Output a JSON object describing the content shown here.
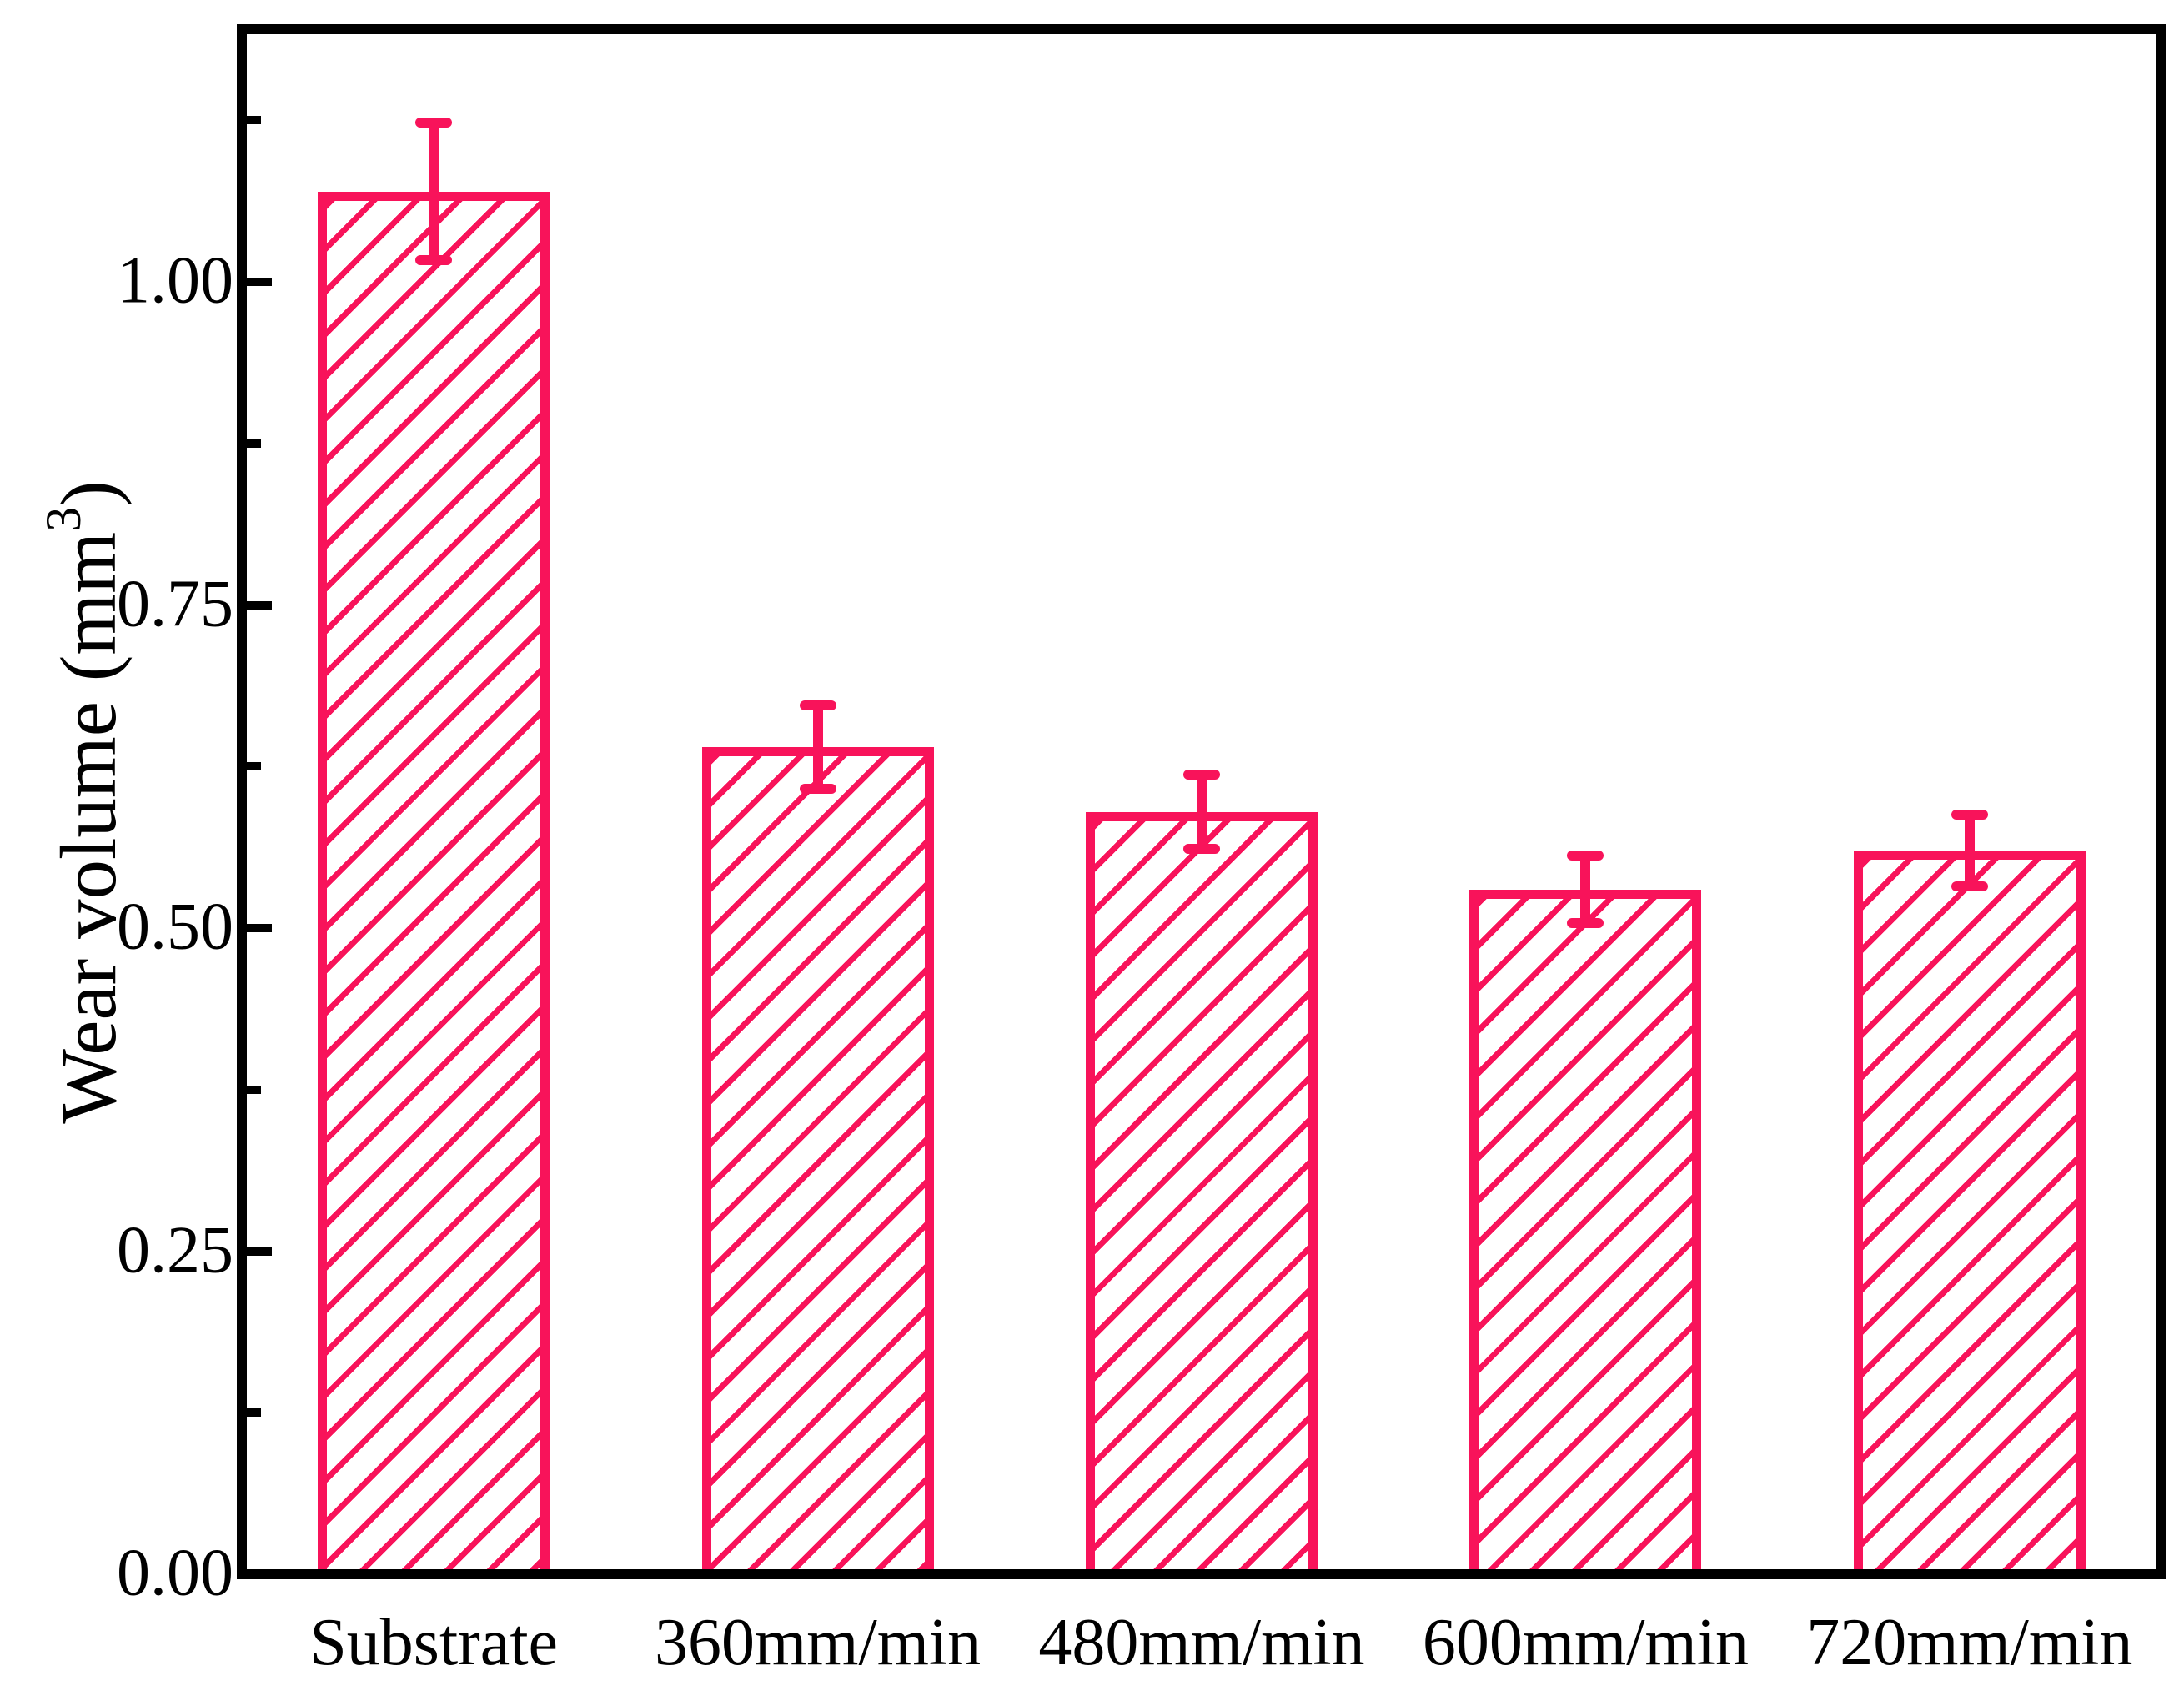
{
  "y_axis": {
    "title_prefix": "Wear volume (mm",
    "title_sup": "3",
    "title_suffix": ")",
    "tick_labels": [
      "0.00",
      "0.25",
      "0.50",
      "0.75",
      "1.00"
    ],
    "tick_values": [
      0,
      0.25,
      0.5,
      0.75,
      1.0
    ],
    "minor_tick_values": [
      0.125,
      0.375,
      0.625,
      0.875,
      1.125
    ],
    "range": [
      0,
      1.2
    ]
  },
  "x_axis": {
    "categories": [
      "Substrate",
      "360mm/min",
      "480mm/min",
      "600mm/min",
      "720mm/min"
    ]
  },
  "chart_data": {
    "type": "bar",
    "title": "",
    "categories": [
      "Substrate",
      "360mm/min",
      "480mm/min",
      "600mm/min",
      "720mm/min"
    ],
    "values": [
      1.07,
      0.64,
      0.59,
      0.53,
      0.56
    ],
    "errors": [
      0.053,
      0.032,
      0.029,
      0.026,
      0.028
    ],
    "xlabel": "",
    "ylabel": "Wear volume (mm³)",
    "ylim": [
      0,
      1.2
    ],
    "ytick_step_major": 0.25,
    "ytick_step_minor": 0.125,
    "ytick_labels": [
      "0.00",
      "0.25",
      "0.50",
      "0.75",
      "1.00"
    ],
    "bar_color": "#F8135A",
    "bar_fill": "hatched",
    "hatch_pattern": "45deg diagonal stripes",
    "error_bars": true,
    "grid": false,
    "legend": "none"
  }
}
